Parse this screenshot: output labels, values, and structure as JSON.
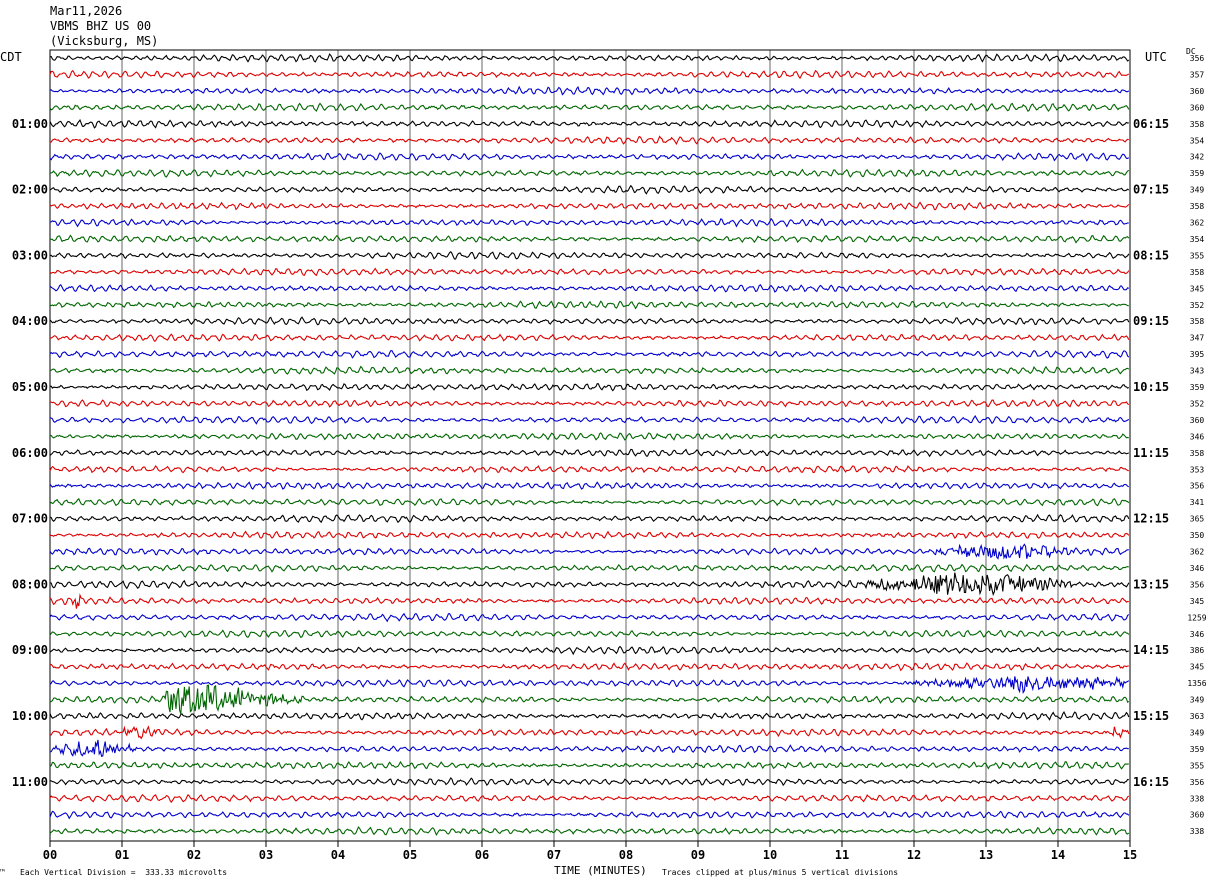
{
  "header": {
    "date": "Mar11,2026",
    "station": "VBMS BHZ US 00",
    "location": "(Vicksburg, MS)",
    "left_zone": "CDT",
    "right_zone": "UTC",
    "dc_label": "DC"
  },
  "footer": {
    "scale_note": "Each Vertical Division =  333.33 microvolts",
    "xlabel": "TIME (MINUTES)",
    "clip_note": "Traces clipped at plus/minus 5 vertical divisions",
    "corner_mark": "™"
  },
  "colors": {
    "trace_cycle": [
      "#000000",
      "#dd0000",
      "#0000cc",
      "#006600"
    ],
    "grid": "#000000",
    "background": "#ffffff"
  },
  "chart_data": {
    "type": "line",
    "title": "VBMS BHZ US 00 (Vicksburg, MS)",
    "xlabel": "TIME (MINUTES)",
    "xlim": [
      0,
      15
    ],
    "x_ticks": [
      "00",
      "01",
      "02",
      "03",
      "04",
      "05",
      "06",
      "07",
      "08",
      "09",
      "10",
      "11",
      "12",
      "13",
      "14",
      "15"
    ],
    "trace_count": 48,
    "trace_minutes": 15,
    "left_time_labels": [
      "01:00",
      "02:00",
      "03:00",
      "04:00",
      "05:00",
      "06:00",
      "07:00",
      "08:00",
      "09:00",
      "10:00",
      "11:00"
    ],
    "right_time_labels": [
      "06:15",
      "07:15",
      "08:15",
      "09:15",
      "10:15",
      "11:15",
      "12:15",
      "13:15",
      "14:15",
      "15:15",
      "16:15"
    ],
    "dc_offsets": [
      "356",
      "357",
      "360",
      "360",
      "358",
      "354",
      "342",
      "359",
      "349",
      "358",
      "362",
      "354",
      "355",
      "358",
      "345",
      "352",
      "358",
      "347",
      "395",
      "343",
      "359",
      "352",
      "360",
      "346",
      "358",
      "353",
      "356",
      "341",
      "365",
      "350",
      "362",
      "346",
      "356",
      "345",
      "1259",
      "346",
      "386",
      "345",
      "1356",
      "349",
      "363",
      "349",
      "359",
      "355",
      "356",
      "338",
      "360",
      "338"
    ],
    "events": [
      {
        "trace": 30,
        "start_min": 12.3,
        "end_min": 14.5,
        "peak_min": 13.2,
        "amplitude": 2.2
      },
      {
        "trace": 32,
        "start_min": 11.0,
        "end_min": 14.2,
        "peak_min": 12.8,
        "amplitude": 3.6
      },
      {
        "trace": 33,
        "start_min": 0.3,
        "end_min": 0.6,
        "peak_min": 0.4,
        "amplitude": 2.2
      },
      {
        "trace": 38,
        "start_min": 11.8,
        "end_min": 15.0,
        "peak_min": 13.5,
        "amplitude": 2.4
      },
      {
        "trace": 39,
        "start_min": 1.6,
        "end_min": 4.6,
        "peak_min": 1.9,
        "amplitude": 4.8
      },
      {
        "trace": 41,
        "start_min": 0.9,
        "end_min": 1.6,
        "peak_min": 1.2,
        "amplitude": 2.0
      },
      {
        "trace": 41,
        "start_min": 14.6,
        "end_min": 15.0,
        "peak_min": 14.8,
        "amplitude": 1.8
      },
      {
        "trace": 42,
        "start_min": 0.0,
        "end_min": 1.2,
        "peak_min": 0.6,
        "amplitude": 2.6
      }
    ]
  }
}
